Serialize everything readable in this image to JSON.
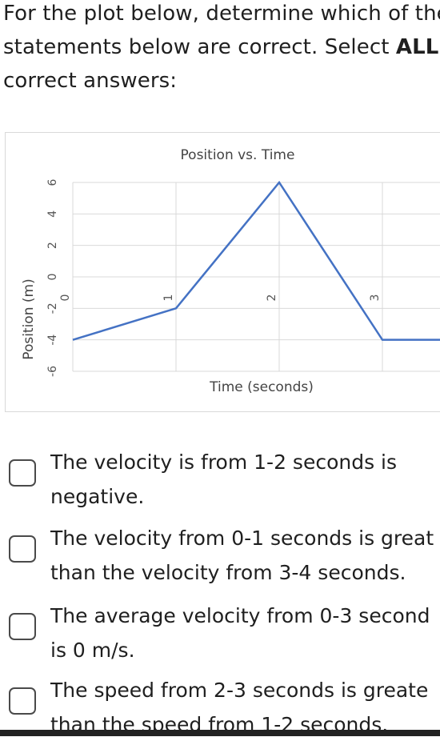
{
  "question": {
    "line1": "For the plot below, determine which of the",
    "line2_prefix": "statements below are correct. Select ",
    "line2_bold": "ALL",
    "line3": "correct answers:"
  },
  "chart_data": {
    "type": "line",
    "title": "Position vs. Time",
    "xlabel": "Time (seconds)",
    "ylabel": "Position (m)",
    "xlim": [
      0,
      4
    ],
    "ylim": [
      -6,
      6
    ],
    "x_ticks": [
      "0",
      "1",
      "2",
      "3"
    ],
    "y_ticks": [
      "6",
      "4",
      "2",
      "0",
      "-2",
      "-4",
      "-6"
    ],
    "grid": true,
    "series": [
      {
        "x": [
          0,
          1,
          2,
          3,
          4
        ],
        "y": [
          -4,
          -2,
          6,
          -4,
          -4
        ],
        "color": "#4472c4"
      }
    ]
  },
  "options": [
    {
      "line1": "The velocity is from 1-2 seconds is",
      "line2": "negative."
    },
    {
      "line1": "The velocity from 0-1 seconds is great",
      "line2": "than the velocity from 3-4 seconds."
    },
    {
      "line1": "The average velocity from 0-3 second",
      "line2": "is 0 m/s."
    },
    {
      "line1": "The speed from 2-3 seconds is greate",
      "line2": "than the speed from 1-2 seconds."
    }
  ],
  "colors": {
    "series": "#4472c4",
    "grid": "#d9d9d9",
    "checkbox_border": "#4a4a4a"
  }
}
